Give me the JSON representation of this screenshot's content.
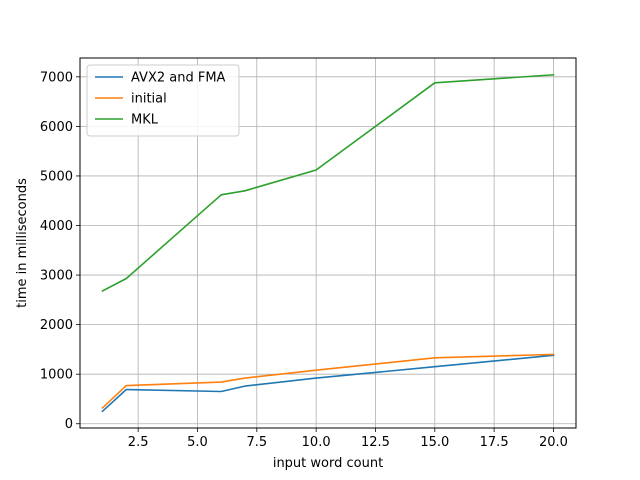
{
  "chart_data": {
    "type": "line",
    "title": "",
    "xlabel": "input word count",
    "ylabel": "time in milliseconds",
    "xlim": [
      0.05,
      20.95
    ],
    "ylim": [
      -86,
      7380
    ],
    "xticks": [
      2.5,
      5.0,
      7.5,
      10.0,
      12.5,
      15.0,
      17.5,
      20.0
    ],
    "xtick_labels": [
      "2.5",
      "5.0",
      "7.5",
      "10.0",
      "12.5",
      "15.0",
      "17.5",
      "20.0"
    ],
    "yticks": [
      0,
      1000,
      2000,
      3000,
      4000,
      5000,
      6000,
      7000
    ],
    "ytick_labels": [
      "0",
      "1000",
      "2000",
      "3000",
      "4000",
      "5000",
      "6000",
      "7000"
    ],
    "grid": true,
    "legend_position": "upper-left",
    "series": [
      {
        "name": "AVX2 and FMA",
        "color": "#1f77b4",
        "x": [
          1,
          2,
          6,
          7,
          10,
          15,
          20
        ],
        "y": [
          250,
          690,
          650,
          760,
          920,
          1150,
          1380
        ]
      },
      {
        "name": "initial",
        "color": "#ff7f0e",
        "x": [
          1,
          2,
          6,
          7,
          10,
          15,
          20
        ],
        "y": [
          320,
          770,
          840,
          920,
          1080,
          1330,
          1400
        ]
      },
      {
        "name": "MKL",
        "color": "#2ca02c",
        "x": [
          1,
          2,
          6,
          7,
          10,
          15,
          20
        ],
        "y": [
          2680,
          2930,
          4620,
          4700,
          5120,
          6880,
          7040
        ]
      }
    ]
  }
}
